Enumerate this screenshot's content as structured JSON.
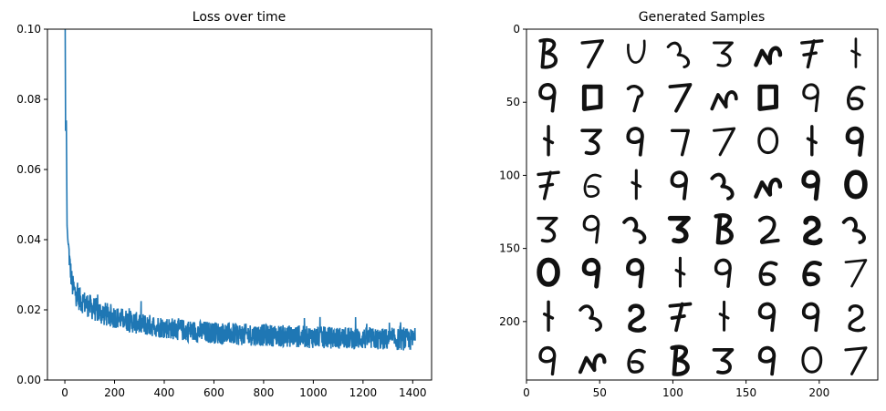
{
  "chart_data": [
    {
      "type": "line",
      "title": "Loss over time",
      "xlabel": "",
      "ylabel": "",
      "xlim": [
        -70,
        1476
      ],
      "ylim": [
        0.0,
        0.1
      ],
      "x_ticks": [
        0,
        200,
        400,
        600,
        800,
        1000,
        1200,
        1400
      ],
      "x_tick_labels": [
        "0",
        "200",
        "400",
        "600",
        "800",
        "1000",
        "1200",
        "1400"
      ],
      "y_ticks": [
        0.0,
        0.02,
        0.04,
        0.06,
        0.08,
        0.1
      ],
      "y_tick_labels": [
        "0.00",
        "0.02",
        "0.04",
        "0.06",
        "0.08",
        "0.10"
      ],
      "grid": false,
      "series": [
        {
          "color": "#1f77b4",
          "points": [
            [
              0,
              0.125
            ],
            [
              3,
              0.071
            ],
            [
              6,
              0.074
            ],
            [
              9,
              0.044
            ],
            [
              12,
              0.04
            ],
            [
              16,
              0.037
            ],
            [
              20,
              0.033
            ],
            [
              25,
              0.03
            ],
            [
              30,
              0.027
            ],
            [
              40,
              0.025
            ],
            [
              60,
              0.023
            ],
            [
              80,
              0.022
            ],
            [
              100,
              0.021
            ],
            [
              150,
              0.019
            ],
            [
              200,
              0.018
            ],
            [
              300,
              0.016
            ],
            [
              400,
              0.015
            ],
            [
              500,
              0.014
            ],
            [
              600,
              0.0135
            ],
            [
              700,
              0.013
            ],
            [
              800,
              0.0128
            ],
            [
              900,
              0.0125
            ],
            [
              1000,
              0.0122
            ],
            [
              1100,
              0.012
            ],
            [
              1200,
              0.0118
            ],
            [
              1300,
              0.0116
            ],
            [
              1400,
              0.0115
            ],
            [
              1410,
              0.0118
            ]
          ],
          "noise_amplitude": 0.0045
        }
      ]
    },
    {
      "type": "heatmap",
      "title": "Generated Samples",
      "xlabel": "",
      "ylabel": "",
      "xlim": [
        0,
        240
      ],
      "ylim": [
        240,
        0
      ],
      "x_ticks": [
        0,
        50,
        100,
        150,
        200
      ],
      "x_tick_labels": [
        "0",
        "50",
        "100",
        "150",
        "200"
      ],
      "y_ticks": [
        0,
        50,
        100,
        150,
        200
      ],
      "y_tick_labels": [
        "0",
        "50",
        "100",
        "150",
        "200"
      ],
      "grid_rows": 8,
      "grid_cols": 8,
      "cell_size": 30,
      "colormap": "gray",
      "ink_color": "#111111"
    }
  ]
}
